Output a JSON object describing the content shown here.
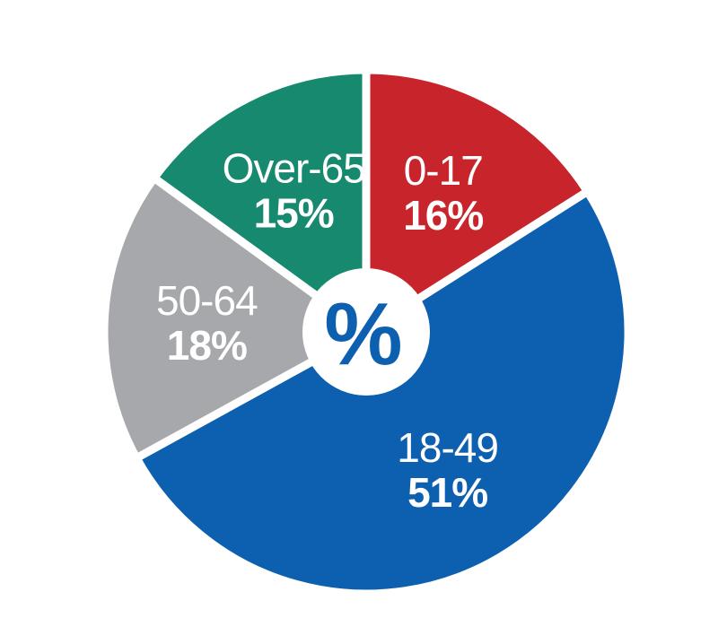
{
  "chart_data": {
    "type": "pie",
    "categories": [
      "0-17",
      "18-49",
      "50-64",
      "Over-65"
    ],
    "values": [
      16,
      51,
      18,
      15
    ],
    "value_labels": [
      "16%",
      "51%",
      "18%",
      "15%"
    ],
    "colors": [
      "#c8242b",
      "#0d5fb0",
      "#a7a8ab",
      "#16896f"
    ],
    "start": "12 o'clock",
    "direction": "clockwise",
    "center_symbol": "%",
    "center_symbol_color": "#0d5fb0",
    "title": "",
    "legend": "none"
  }
}
